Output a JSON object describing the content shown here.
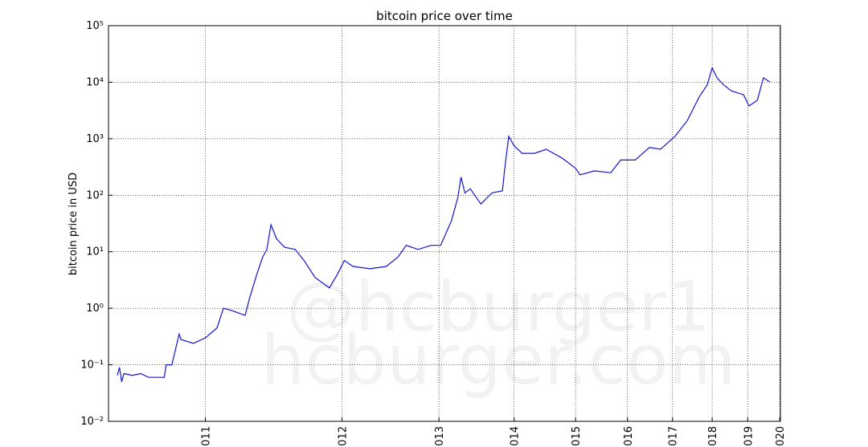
{
  "chart_data": {
    "type": "line",
    "title": "bitcoin price over time",
    "ylabel": "bitcoin price in USD",
    "watermark": [
      "@hcburger1",
      "hcburger.com"
    ],
    "yscale": "log",
    "xscale": {
      "type": "log",
      "origin": 2009
    },
    "grid": true,
    "xlim": [
      2010.5,
      2020.02
    ],
    "ylim": [
      0.01,
      100000
    ],
    "xticks": [
      {
        "value": 2011,
        "label": "011"
      },
      {
        "value": 2012,
        "label": "012"
      },
      {
        "value": 2013,
        "label": "013"
      },
      {
        "value": 2014,
        "label": "014"
      },
      {
        "value": 2015,
        "label": "015"
      },
      {
        "value": 2016,
        "label": "016"
      },
      {
        "value": 2017,
        "label": "017"
      },
      {
        "value": 2018,
        "label": "018"
      },
      {
        "value": 2019,
        "label": "019"
      },
      {
        "value": 2020,
        "label": "020"
      }
    ],
    "yticks": [
      {
        "value": 0.01,
        "label": "10⁻²"
      },
      {
        "value": 0.1,
        "label": "10⁻¹"
      },
      {
        "value": 1,
        "label": "10⁰"
      },
      {
        "value": 10,
        "label": "10¹"
      },
      {
        "value": 100,
        "label": "10²"
      },
      {
        "value": 1000,
        "label": "10³"
      },
      {
        "value": 10000,
        "label": "10⁴"
      },
      {
        "value": 100000,
        "label": "10⁵"
      }
    ],
    "x": [
      2010.54,
      2010.55,
      2010.56,
      2010.57,
      2010.61,
      2010.65,
      2010.69,
      2010.77,
      2010.78,
      2010.81,
      2010.85,
      2010.86,
      2010.93,
      2011.0,
      2011.07,
      2011.11,
      2011.17,
      2011.25,
      2011.28,
      2011.33,
      2011.37,
      2011.4,
      2011.43,
      2011.47,
      2011.53,
      2011.61,
      2011.68,
      2011.77,
      2011.89,
      2011.96,
      2012.02,
      2012.1,
      2012.26,
      2012.42,
      2012.54,
      2012.63,
      2012.76,
      2012.91,
      2013.02,
      2013.15,
      2013.23,
      2013.27,
      2013.32,
      2013.39,
      2013.53,
      2013.68,
      2013.83,
      2013.86,
      2013.92,
      2014.0,
      2014.12,
      2014.31,
      2014.5,
      2014.77,
      2015.0,
      2015.08,
      2015.35,
      2015.66,
      2015.86,
      2016.16,
      2016.47,
      2016.72,
      2017.06,
      2017.36,
      2017.66,
      2017.87,
      2018.0,
      2018.13,
      2018.31,
      2018.53,
      2018.88,
      2019.04,
      2019.29,
      2019.48,
      2019.69
    ],
    "series": [
      {
        "name": "bitcoin price",
        "color": "#1515d0",
        "values": [
          0.065,
          0.09,
          0.05,
          0.07,
          0.065,
          0.07,
          0.06,
          0.06,
          0.1,
          0.1,
          0.35,
          0.28,
          0.24,
          0.3,
          0.45,
          1.0,
          0.9,
          0.75,
          1.5,
          4,
          8,
          11,
          30,
          17,
          12,
          11,
          7,
          3.5,
          2.3,
          4,
          7,
          5.5,
          5,
          5.5,
          8,
          13,
          11,
          13,
          13,
          35,
          90,
          210,
          110,
          130,
          70,
          110,
          120,
          280,
          1100,
          750,
          550,
          550,
          650,
          450,
          300,
          230,
          270,
          250,
          420,
          420,
          700,
          650,
          1100,
          2100,
          5500,
          9000,
          18000,
          12000,
          9000,
          7000,
          6000,
          3800,
          4800,
          12000,
          10000
        ]
      }
    ]
  }
}
